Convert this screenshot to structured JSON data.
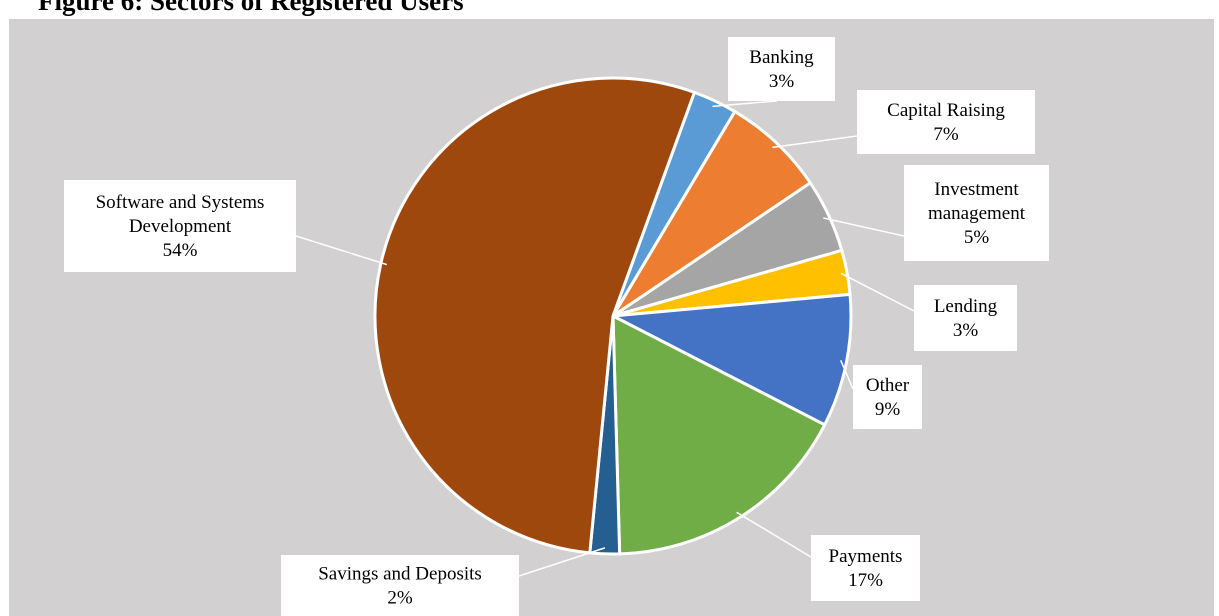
{
  "figure": {
    "title": "Figure 6: Sectors of Registered Users"
  },
  "chart_data": {
    "type": "pie",
    "title": "Figure 6: Sectors of Registered Users",
    "start_angle_deg": 20,
    "direction": "clockwise",
    "slices": [
      {
        "label": [
          "Banking"
        ],
        "value": 3,
        "pct": "3%",
        "color": "#5b9bd5"
      },
      {
        "label": [
          "Capital Raising"
        ],
        "value": 7,
        "pct": "7%",
        "color": "#ed7d31"
      },
      {
        "label": [
          "Investment",
          "management"
        ],
        "value": 5,
        "pct": "5%",
        "color": "#a5a5a5"
      },
      {
        "label": [
          "Lending"
        ],
        "value": 3,
        "pct": "3%",
        "color": "#ffc000"
      },
      {
        "label": [
          "Other"
        ],
        "value": 9,
        "pct": "9%",
        "color": "#4472c4"
      },
      {
        "label": [
          "Payments"
        ],
        "value": 17,
        "pct": "17%",
        "color": "#70ad47"
      },
      {
        "label": [
          "Savings and Deposits"
        ],
        "value": 2,
        "pct": "2%",
        "color": "#255e91"
      },
      {
        "label": [
          "Software and Systems",
          "Development"
        ],
        "value": 54,
        "pct": "54%",
        "color": "#9e480e"
      }
    ],
    "legend": "none",
    "data_labels": "callouts"
  }
}
